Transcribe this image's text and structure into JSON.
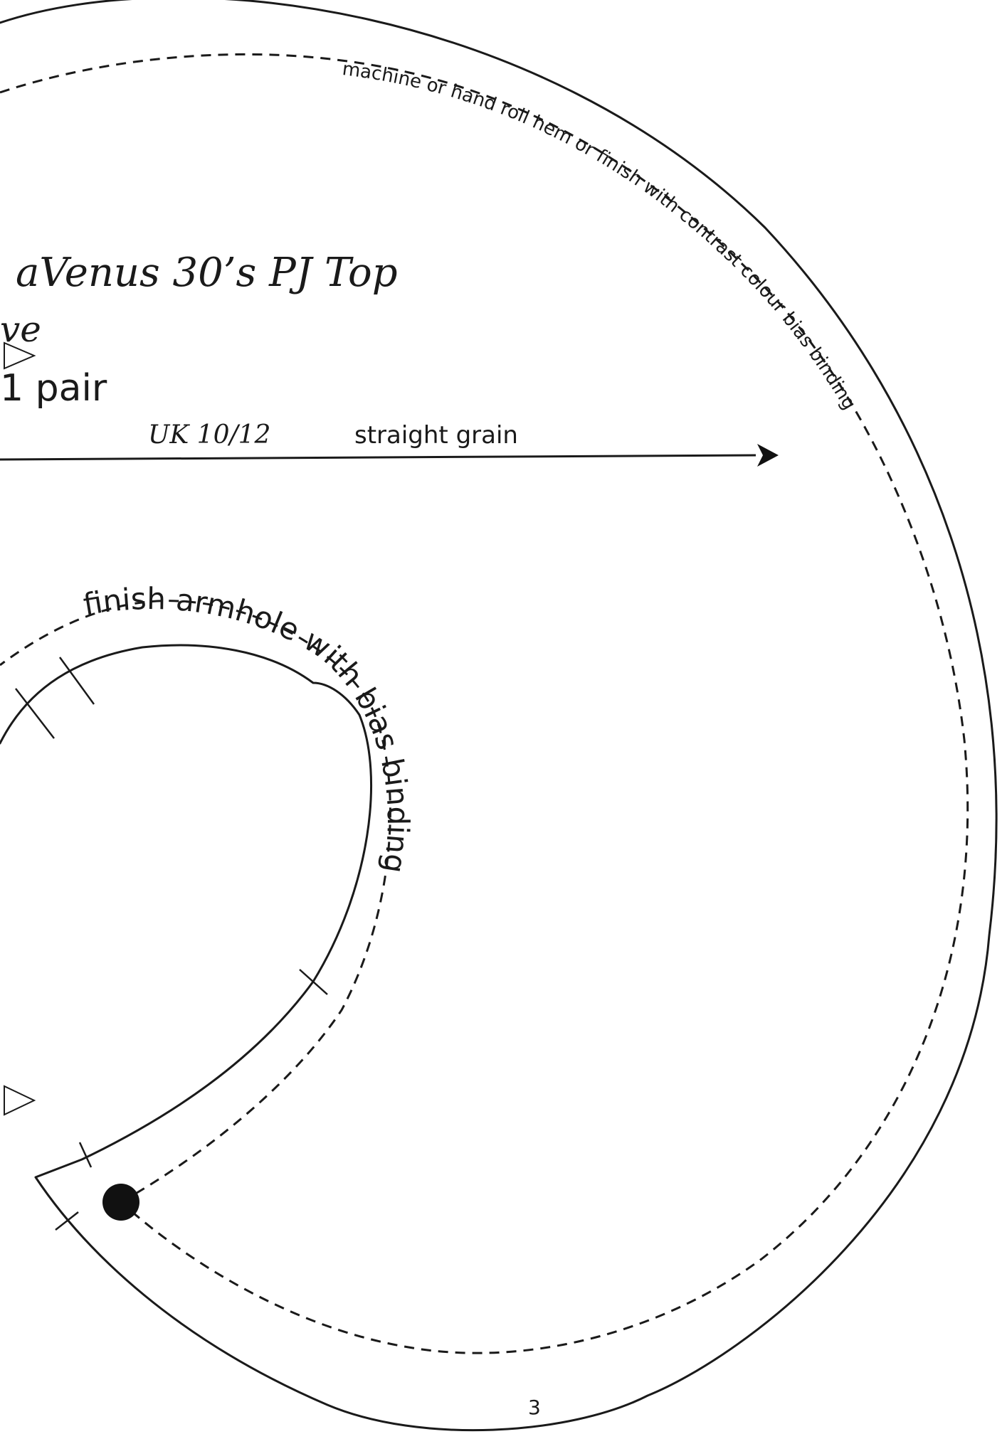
{
  "pattern": {
    "title": "aVenus 30’s PJ Top",
    "piece_name": "ve",
    "cut_quantity": "1 pair",
    "size": "UK 10/12",
    "grain_label": "straight grain",
    "hem_instruction": "machine or hand roll hem or finish with contrast colour bias binding",
    "armhole_instruction": "finish armhole with bias binding",
    "page_number": "3"
  }
}
